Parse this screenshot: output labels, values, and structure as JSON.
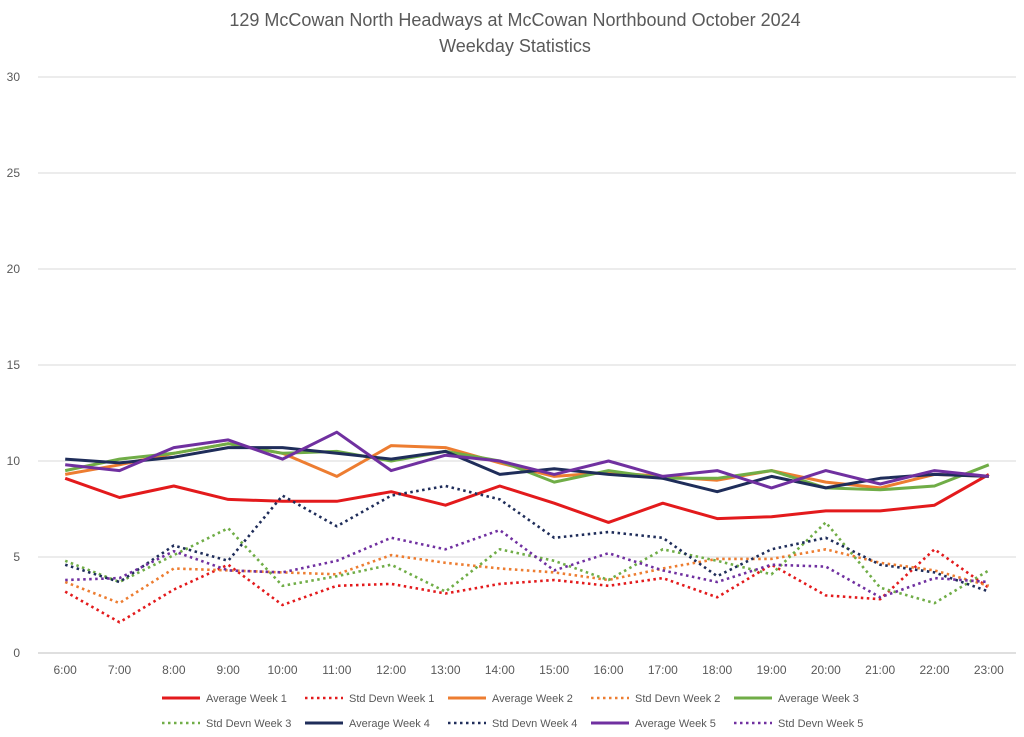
{
  "chart_data": {
    "type": "line",
    "title": "129 McCowan North Headways at McCowan Northbound October 2024",
    "subtitle": "Weekday Statistics",
    "xlabel": "",
    "ylabel": "",
    "categories": [
      "6:00",
      "7:00",
      "8:00",
      "9:00",
      "10:00",
      "11:00",
      "12:00",
      "13:00",
      "14:00",
      "15:00",
      "16:00",
      "17:00",
      "18:00",
      "19:00",
      "20:00",
      "21:00",
      "22:00",
      "23:00"
    ],
    "ylim": [
      0,
      30
    ],
    "yticks": [
      0,
      5,
      10,
      15,
      20,
      25,
      30
    ],
    "grid": true,
    "legend_position": "bottom",
    "series": [
      {
        "name": "Average Week 1",
        "color": "#e31a1c",
        "style": "solid",
        "values": [
          9.1,
          8.1,
          8.7,
          8.0,
          7.9,
          7.9,
          8.4,
          7.7,
          8.7,
          7.8,
          6.8,
          7.8,
          7.0,
          7.1,
          7.4,
          7.4,
          7.7,
          9.3
        ]
      },
      {
        "name": "Std Devn Week 1",
        "color": "#e31a1c",
        "style": "dotted",
        "values": [
          3.2,
          1.6,
          3.3,
          4.6,
          2.5,
          3.5,
          3.6,
          3.1,
          3.6,
          3.8,
          3.5,
          3.9,
          2.9,
          4.6,
          3.0,
          2.8,
          5.4,
          3.4
        ]
      },
      {
        "name": "Average Week 2",
        "color": "#ed7d31",
        "style": "solid",
        "values": [
          9.3,
          9.8,
          10.4,
          10.9,
          10.4,
          9.2,
          10.8,
          10.7,
          9.9,
          9.2,
          9.4,
          9.2,
          9.0,
          9.5,
          8.9,
          8.6,
          9.3,
          9.2
        ]
      },
      {
        "name": "Std Devn Week 2",
        "color": "#ed7d31",
        "style": "dotted",
        "values": [
          3.7,
          2.6,
          4.4,
          4.3,
          4.2,
          4.1,
          5.1,
          4.7,
          4.4,
          4.2,
          3.8,
          4.4,
          4.9,
          4.9,
          5.4,
          4.7,
          4.3,
          3.5
        ]
      },
      {
        "name": "Average Week 3",
        "color": "#70ad47",
        "style": "solid",
        "values": [
          9.5,
          10.1,
          10.4,
          10.9,
          10.4,
          10.5,
          10.0,
          10.5,
          10.0,
          8.9,
          9.5,
          9.1,
          9.1,
          9.5,
          8.6,
          8.5,
          8.7,
          9.8
        ]
      },
      {
        "name": "Std Devn Week 3",
        "color": "#70ad47",
        "style": "dotted",
        "values": [
          4.8,
          3.7,
          5.1,
          6.5,
          3.5,
          4.0,
          4.6,
          3.2,
          5.4,
          4.8,
          3.8,
          5.4,
          4.8,
          4.1,
          6.8,
          3.4,
          2.6,
          4.3
        ]
      },
      {
        "name": "Average Week 4",
        "color": "#1f2d5a",
        "style": "solid",
        "values": [
          10.1,
          9.9,
          10.2,
          10.7,
          10.7,
          10.4,
          10.1,
          10.5,
          9.3,
          9.6,
          9.3,
          9.1,
          8.4,
          9.2,
          8.6,
          9.1,
          9.3,
          9.2
        ]
      },
      {
        "name": "Std Devn Week 4",
        "color": "#1f2d5a",
        "style": "dotted",
        "values": [
          4.6,
          3.7,
          5.6,
          4.8,
          8.2,
          6.6,
          8.2,
          8.7,
          8.0,
          6.0,
          6.3,
          6.0,
          4.0,
          5.4,
          6.0,
          4.6,
          4.2,
          3.2
        ]
      },
      {
        "name": "Average Week 5",
        "color": "#7030a0",
        "style": "solid",
        "values": [
          9.8,
          9.5,
          10.7,
          11.1,
          10.1,
          11.5,
          9.5,
          10.3,
          10.0,
          9.3,
          10.0,
          9.2,
          9.5,
          8.6,
          9.5,
          8.8,
          9.5,
          9.2
        ]
      },
      {
        "name": "Std Devn Week 5",
        "color": "#7030a0",
        "style": "dotted",
        "values": [
          3.8,
          3.9,
          5.3,
          4.3,
          4.2,
          4.8,
          6.0,
          5.4,
          6.4,
          4.3,
          5.2,
          4.3,
          3.7,
          4.6,
          4.5,
          2.9,
          3.9,
          3.7
        ]
      }
    ]
  }
}
